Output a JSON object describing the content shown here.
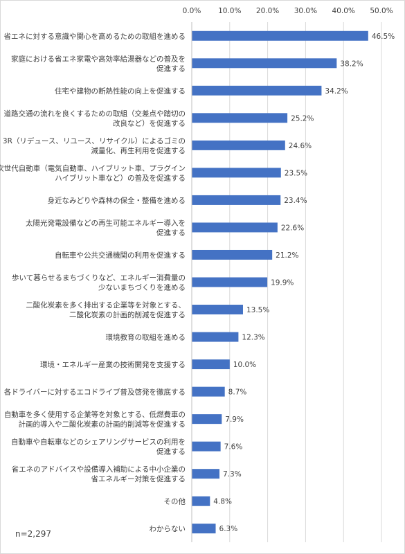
{
  "chart_data": {
    "type": "bar",
    "orientation": "horizontal",
    "xlim": [
      0,
      50
    ],
    "x_ticks": [
      "0.0%",
      "10.0%",
      "20.0%",
      "30.0%",
      "40.0%",
      "50.0%"
    ],
    "tick_values": [
      0,
      10,
      20,
      30,
      40,
      50
    ],
    "grid": true,
    "bar_color": "#4472c4",
    "categories": [
      [
        "省エネに対する意識や関心を高めるための取組を進める"
      ],
      [
        "家庭における省エネ家電や高効率給湯器などの普及を",
        "促進する"
      ],
      [
        "住宅や建物の断熱性能の向上を促進する"
      ],
      [
        "道路交通の流れを良くするための取組（交差点や踏切の",
        "改良など）を促進する"
      ],
      [
        "3R（リデュース、リユース、リサイクル）によるゴミの",
        "減量化、再生利用を促進する"
      ],
      [
        "次世代自動車（電気自動車、ハイブリット車、プラグイン",
        "ハイブリット車など）の普及を促進する"
      ],
      [
        "身近なみどりや森林の保全・整備を進める"
      ],
      [
        "太陽光発電設備などの再生可能エネルギー導入を",
        "促進する"
      ],
      [
        "自転車や公共交通機関の利用を促進する"
      ],
      [
        "歩いて暮らせるまちづくりなど、エネルギー消費量の",
        "少ないまちづくりを進める"
      ],
      [
        "二酸化炭素を多く排出する企業等を対象とする、",
        "二酸化炭素の計画的削減を促進する"
      ],
      [
        "環境教育の取組を進める"
      ],
      [
        "環境・エネルギー産業の技術開発を支援する"
      ],
      [
        "各ドライバーに対するエコドライブ普及啓発を徹底する"
      ],
      [
        "自動車を多く使用する企業等を対象とする、低燃費車の",
        "計画的導入や二酸化炭素の計画的削減等を促進する"
      ],
      [
        "自動車や自転車などのシェアリングサービスの利用を",
        "促進する"
      ],
      [
        "省エネのアドバイスや設備導入補助による中小企業の",
        "省エネルギー対策を促進する"
      ],
      [
        "その他"
      ],
      [
        "わからない"
      ]
    ],
    "values": [
      46.5,
      38.2,
      34.2,
      25.2,
      24.6,
      23.5,
      23.4,
      22.6,
      21.2,
      19.9,
      13.5,
      12.3,
      10.0,
      8.7,
      7.9,
      7.6,
      7.3,
      4.8,
      6.3
    ],
    "value_labels": [
      "46.5%",
      "38.2%",
      "34.2%",
      "25.2%",
      "24.6%",
      "23.5%",
      "23.4%",
      "22.6%",
      "21.2%",
      "19.9%",
      "13.5%",
      "12.3%",
      "10.0%",
      "8.7%",
      "7.9%",
      "7.6%",
      "7.3%",
      "4.8%",
      "6.3%"
    ]
  },
  "note": "n=2,297"
}
